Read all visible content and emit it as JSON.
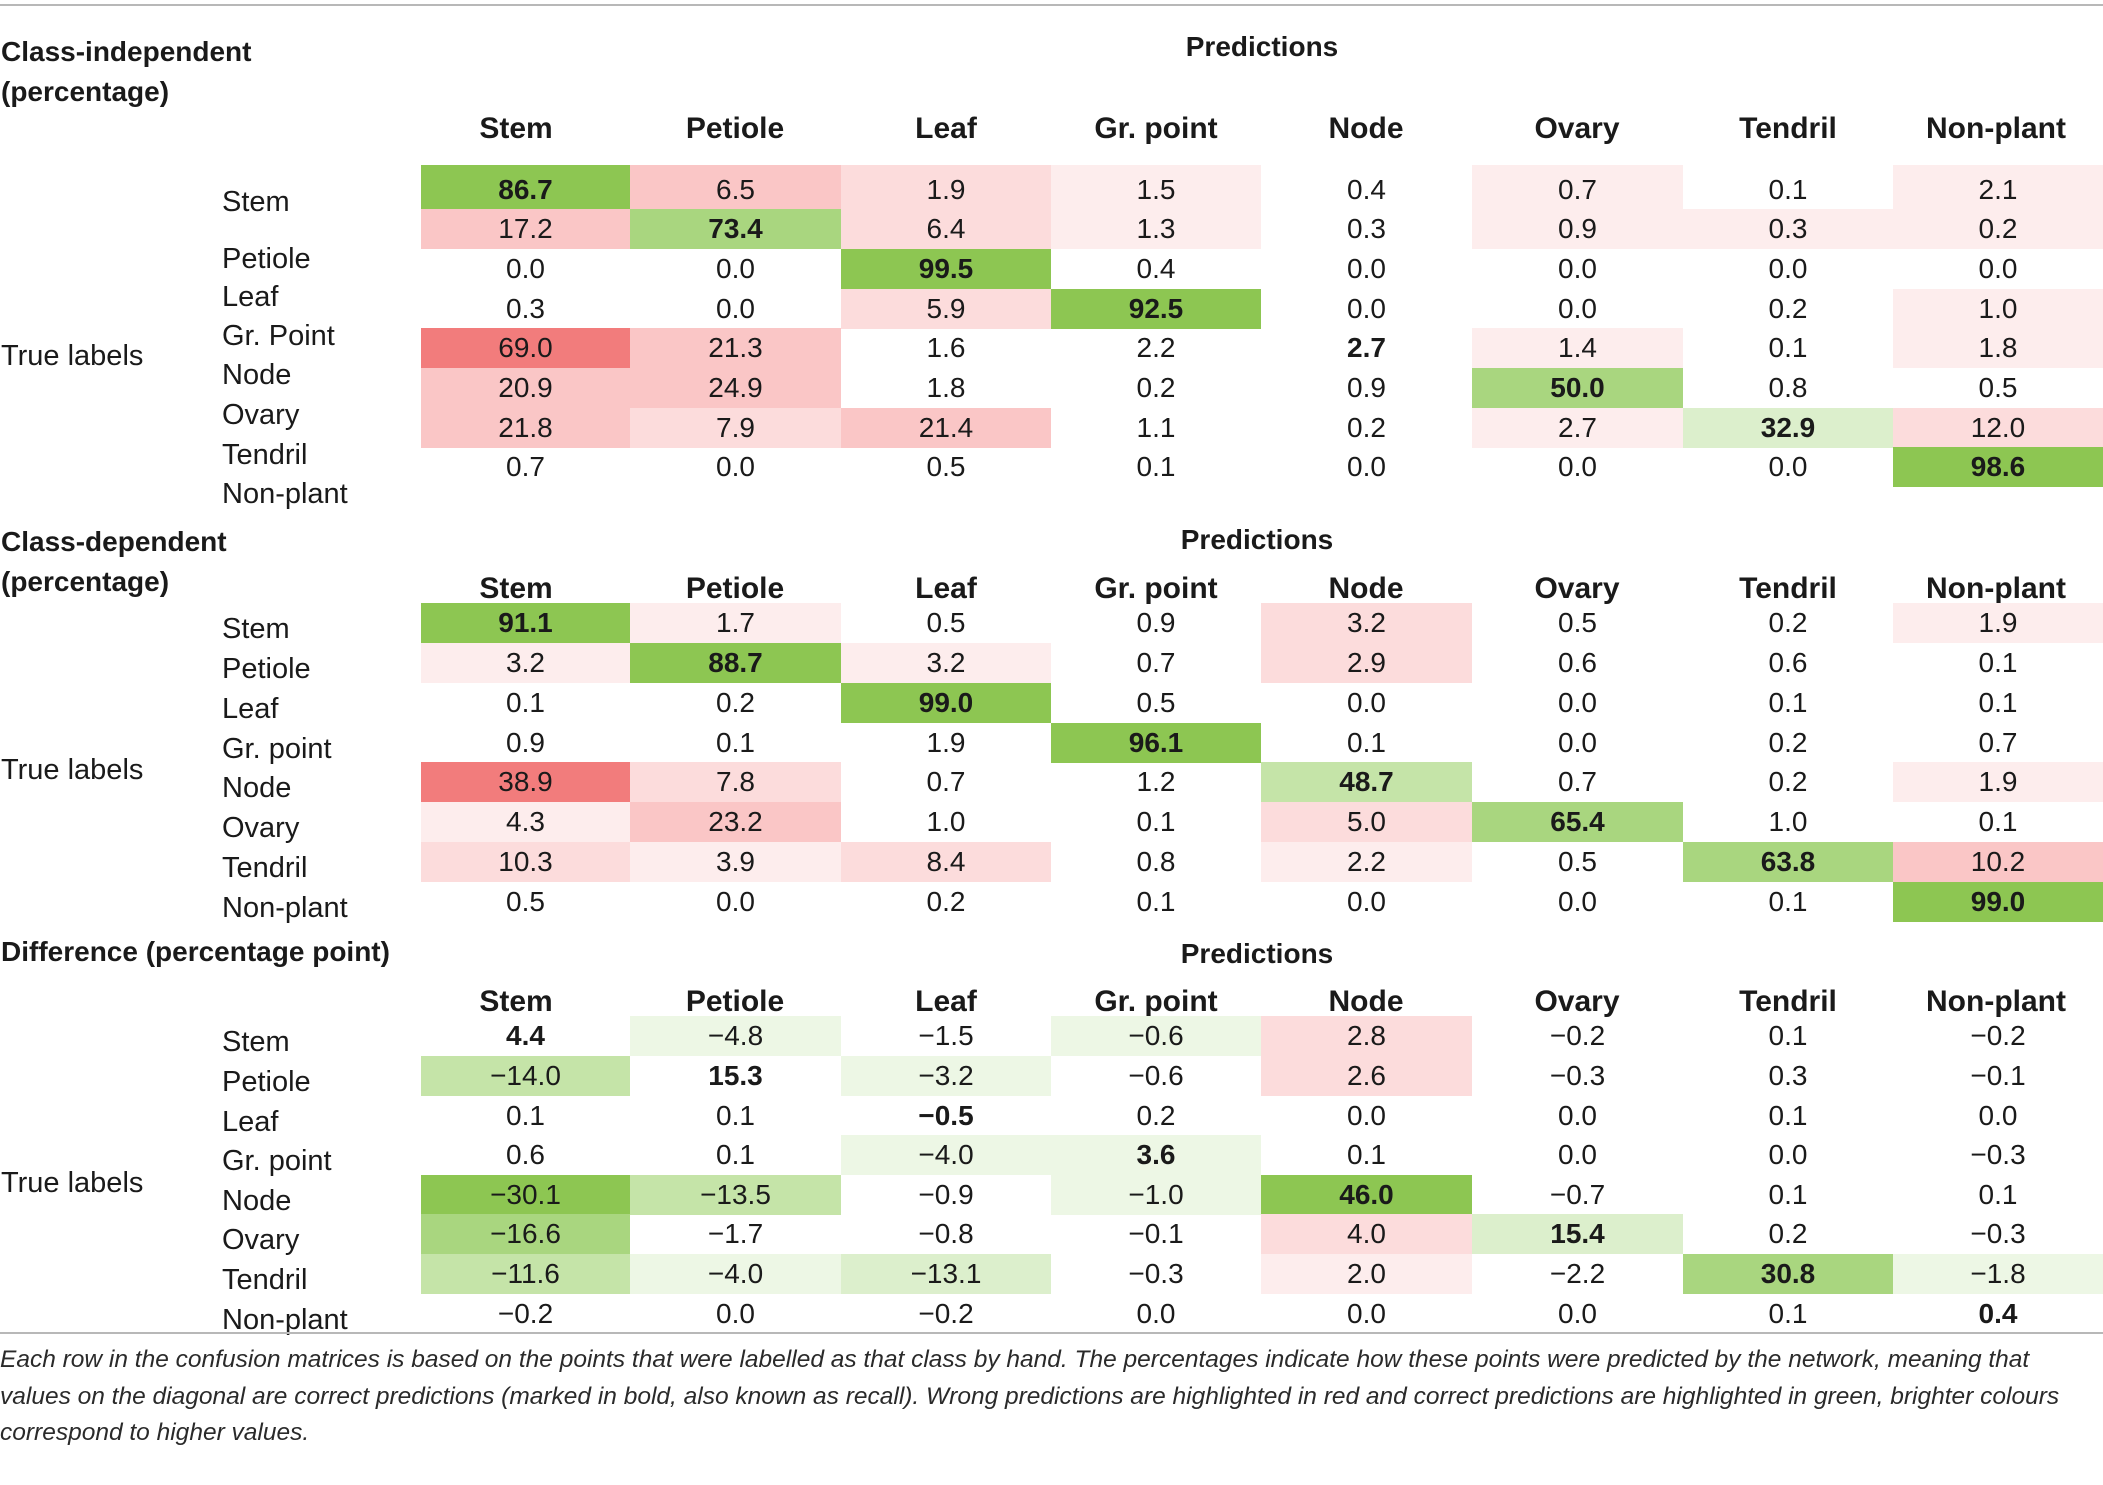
{
  "columns": [
    "Stem",
    "Petiole",
    "Leaf",
    "Gr. point",
    "Node",
    "Ovary",
    "Tendril",
    "Non-plant"
  ],
  "predictions_label": "Predictions",
  "true_labels_label": "True labels",
  "colors": {
    "green_strong": "#8dc652",
    "red_strong": "#f27c7c",
    "background": "#ffffff",
    "rule": "#b8b8b8"
  },
  "sections": [
    {
      "title": "Class-independent\n(percentage)",
      "rows": [
        {
          "label": "Stem",
          "values": [
            "86.7",
            "6.5",
            "1.9",
            "1.5",
            "0.4",
            "0.7",
            "0.1",
            "2.1"
          ]
        },
        {
          "label": "Petiole",
          "values": [
            "17.2",
            "73.4",
            "6.4",
            "1.3",
            "0.3",
            "0.9",
            "0.3",
            "0.2"
          ]
        },
        {
          "label": "Leaf",
          "values": [
            "0.0",
            "0.0",
            "99.5",
            "0.4",
            "0.0",
            "0.0",
            "0.0",
            "0.0"
          ]
        },
        {
          "label": "Gr. Point",
          "values": [
            "0.3",
            "0.0",
            "5.9",
            "92.5",
            "0.0",
            "0.0",
            "0.2",
            "1.0"
          ]
        },
        {
          "label": "Node",
          "values": [
            "69.0",
            "21.3",
            "1.6",
            "2.2",
            "2.7",
            "1.4",
            "0.1",
            "1.8"
          ]
        },
        {
          "label": "Ovary",
          "values": [
            "20.9",
            "24.9",
            "1.8",
            "0.2",
            "0.9",
            "50.0",
            "0.8",
            "0.5"
          ]
        },
        {
          "label": "Tendril",
          "values": [
            "21.8",
            "7.9",
            "21.4",
            "1.1",
            "0.2",
            "2.7",
            "32.9",
            "12.0"
          ]
        },
        {
          "label": "Non-plant",
          "values": [
            "0.7",
            "0.0",
            "0.5",
            "0.1",
            "0.0",
            "0.0",
            "0.0",
            "98.6"
          ]
        }
      ]
    },
    {
      "title": "Class-dependent\n(percentage)",
      "rows": [
        {
          "label": "Stem",
          "values": [
            "91.1",
            "1.7",
            "0.5",
            "0.9",
            "3.2",
            "0.5",
            "0.2",
            "1.9"
          ]
        },
        {
          "label": "Petiole",
          "values": [
            "3.2",
            "88.7",
            "3.2",
            "0.7",
            "2.9",
            "0.6",
            "0.6",
            "0.1"
          ]
        },
        {
          "label": "Leaf",
          "values": [
            "0.1",
            "0.2",
            "99.0",
            "0.5",
            "0.0",
            "0.0",
            "0.1",
            "0.1"
          ]
        },
        {
          "label": "Gr. point",
          "values": [
            "0.9",
            "0.1",
            "1.9",
            "96.1",
            "0.1",
            "0.0",
            "0.2",
            "0.7"
          ]
        },
        {
          "label": "Node",
          "values": [
            "38.9",
            "7.8",
            "0.7",
            "1.2",
            "48.7",
            "0.7",
            "0.2",
            "1.9"
          ]
        },
        {
          "label": "Ovary",
          "values": [
            "4.3",
            "23.2",
            "1.0",
            "0.1",
            "5.0",
            "65.4",
            "1.0",
            "0.1"
          ]
        },
        {
          "label": "Tendril",
          "values": [
            "10.3",
            "3.9",
            "8.4",
            "0.8",
            "2.2",
            "0.5",
            "63.8",
            "10.2"
          ]
        },
        {
          "label": "Non-plant",
          "values": [
            "0.5",
            "0.0",
            "0.2",
            "0.1",
            "0.0",
            "0.0",
            "0.1",
            "99.0"
          ]
        }
      ]
    },
    {
      "title": "Difference (percentage point)",
      "rows": [
        {
          "label": "Stem",
          "values": [
            "4.4",
            "−4.8",
            "−1.5",
            "−0.6",
            "2.8",
            "−0.2",
            "0.1",
            "−0.2"
          ]
        },
        {
          "label": "Petiole",
          "values": [
            "−14.0",
            "15.3",
            "−3.2",
            "−0.6",
            "2.6",
            "−0.3",
            "0.3",
            "−0.1"
          ]
        },
        {
          "label": "Leaf",
          "values": [
            "0.1",
            "0.1",
            "−0.5",
            "0.2",
            "0.0",
            "0.0",
            "0.1",
            "0.0"
          ]
        },
        {
          "label": "Gr. point",
          "values": [
            "0.6",
            "0.1",
            "−4.0",
            "3.6",
            "0.1",
            "0.0",
            "0.0",
            "−0.3"
          ]
        },
        {
          "label": "Node",
          "values": [
            "−30.1",
            "−13.5",
            "−0.9",
            "−1.0",
            "46.0",
            "−0.7",
            "0.1",
            "0.1"
          ]
        },
        {
          "label": "Ovary",
          "values": [
            "−16.6",
            "−1.7",
            "−0.8",
            "−0.1",
            "4.0",
            "15.4",
            "0.2",
            "−0.3"
          ]
        },
        {
          "label": "Tendril",
          "values": [
            "−11.6",
            "−4.0",
            "−13.1",
            "−0.3",
            "2.0",
            "−2.2",
            "30.8",
            "−1.8"
          ]
        },
        {
          "label": "Non-plant",
          "values": [
            "−0.2",
            "0.0",
            "−0.2",
            "0.0",
            "0.0",
            "0.0",
            "0.1",
            "0.4"
          ]
        }
      ]
    }
  ],
  "caption": "Each row in the confusion matrices is based on the points that were labelled as that class by hand. The percentages indicate how these points were predicted by the network, meaning that values on the diagonal are correct predictions (marked in bold, also known as recall). Wrong predictions are highlighted in red and correct predictions are highlighted in green, brighter colours correspond to higher values."
}
